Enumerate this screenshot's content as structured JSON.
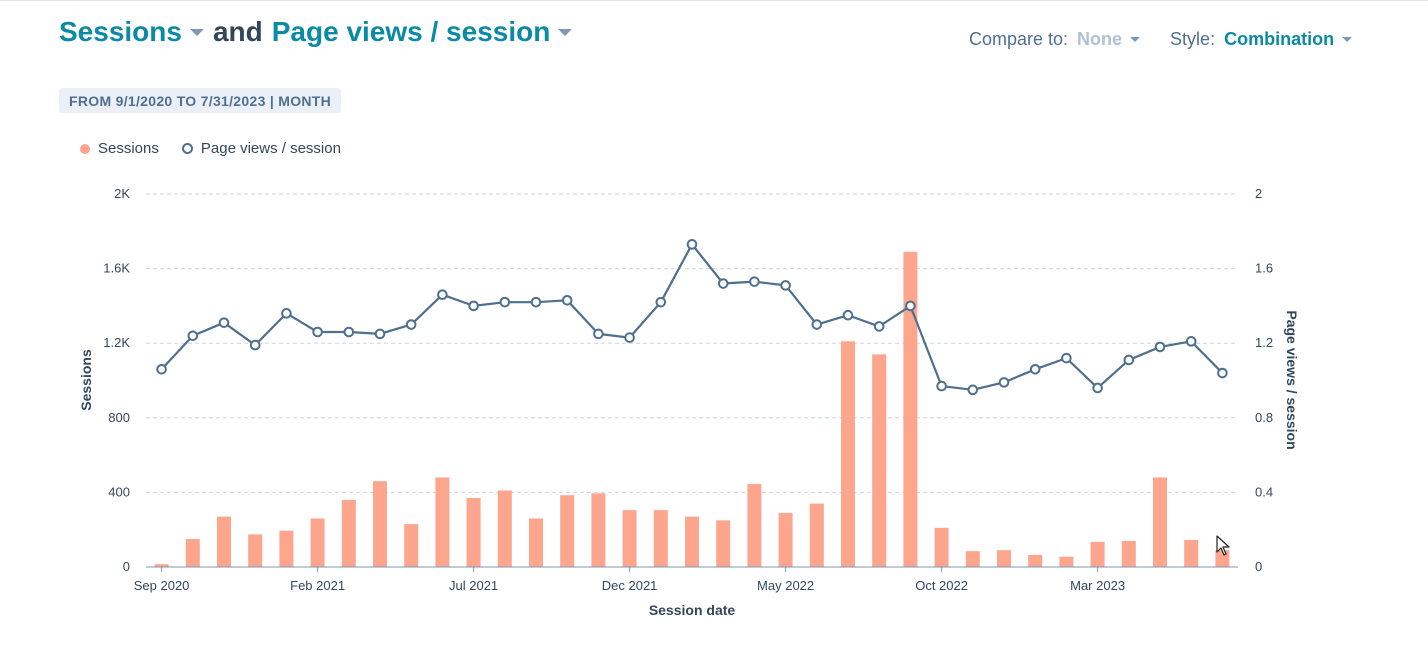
{
  "header": {
    "metric1": "Sessions",
    "joiner": "and",
    "metric2": "Page views / session",
    "compare_label": "Compare to:",
    "compare_value": "None",
    "style_label": "Style:",
    "style_value": "Combination"
  },
  "date_range": "FROM 9/1/2020 TO 7/31/2023 | MONTH",
  "colors": {
    "bar": "#fea58e",
    "line": "#4e6f8e",
    "accent": "#0b8aa6",
    "grid": "#cbd6e2"
  },
  "chart_data": {
    "type": "combination",
    "legend_position": "top-left",
    "grid": true,
    "xlabel": "Session date",
    "ylabel_left": "Sessions",
    "ylabel_right": "Page views / session",
    "ylim_left": [
      0,
      2000
    ],
    "ylim_right": [
      0,
      2
    ],
    "yticks_left": [
      "0",
      "400",
      "800",
      "1.2K",
      "1.6K",
      "2K"
    ],
    "yticks_right": [
      "0",
      "0.4",
      "0.8",
      "1.2",
      "1.6",
      "2"
    ],
    "x": [
      "2020-09",
      "2020-10",
      "2020-11",
      "2020-12",
      "2021-01",
      "2021-02",
      "2021-03",
      "2021-04",
      "2021-05",
      "2021-06",
      "2021-07",
      "2021-08",
      "2021-09",
      "2021-10",
      "2021-11",
      "2021-12",
      "2022-01",
      "2022-02",
      "2022-03",
      "2022-04",
      "2022-05",
      "2022-06",
      "2022-07",
      "2022-08",
      "2022-09",
      "2022-10",
      "2022-11",
      "2022-12",
      "2023-01",
      "2023-02",
      "2023-03",
      "2023-04",
      "2023-05",
      "2023-06",
      "2023-07"
    ],
    "x_tick_labels": [
      {
        "index": 0,
        "label": "Sep 2020"
      },
      {
        "index": 5,
        "label": "Feb 2021"
      },
      {
        "index": 10,
        "label": "Jul 2021"
      },
      {
        "index": 15,
        "label": "Dec 2021"
      },
      {
        "index": 20,
        "label": "May 2022"
      },
      {
        "index": 25,
        "label": "Oct 2022"
      },
      {
        "index": 30,
        "label": "Mar 2023"
      }
    ],
    "series": [
      {
        "name": "Sessions",
        "type": "bar",
        "axis": "left",
        "values": [
          15,
          150,
          270,
          175,
          195,
          260,
          360,
          460,
          230,
          480,
          370,
          410,
          260,
          385,
          395,
          305,
          305,
          270,
          250,
          445,
          290,
          340,
          1210,
          1140,
          1690,
          210,
          85,
          90,
          65,
          55,
          135,
          140,
          480,
          145,
          90
        ]
      },
      {
        "name": "Page views / session",
        "type": "line",
        "axis": "right",
        "values": [
          1.06,
          1.24,
          1.31,
          1.19,
          1.36,
          1.26,
          1.26,
          1.25,
          1.3,
          1.46,
          1.4,
          1.42,
          1.42,
          1.43,
          1.25,
          1.23,
          1.42,
          1.73,
          1.52,
          1.53,
          1.51,
          1.3,
          1.35,
          1.29,
          1.4,
          0.97,
          0.95,
          0.99,
          1.06,
          1.12,
          0.96,
          1.11,
          1.18,
          1.21,
          1.04
        ]
      }
    ]
  }
}
